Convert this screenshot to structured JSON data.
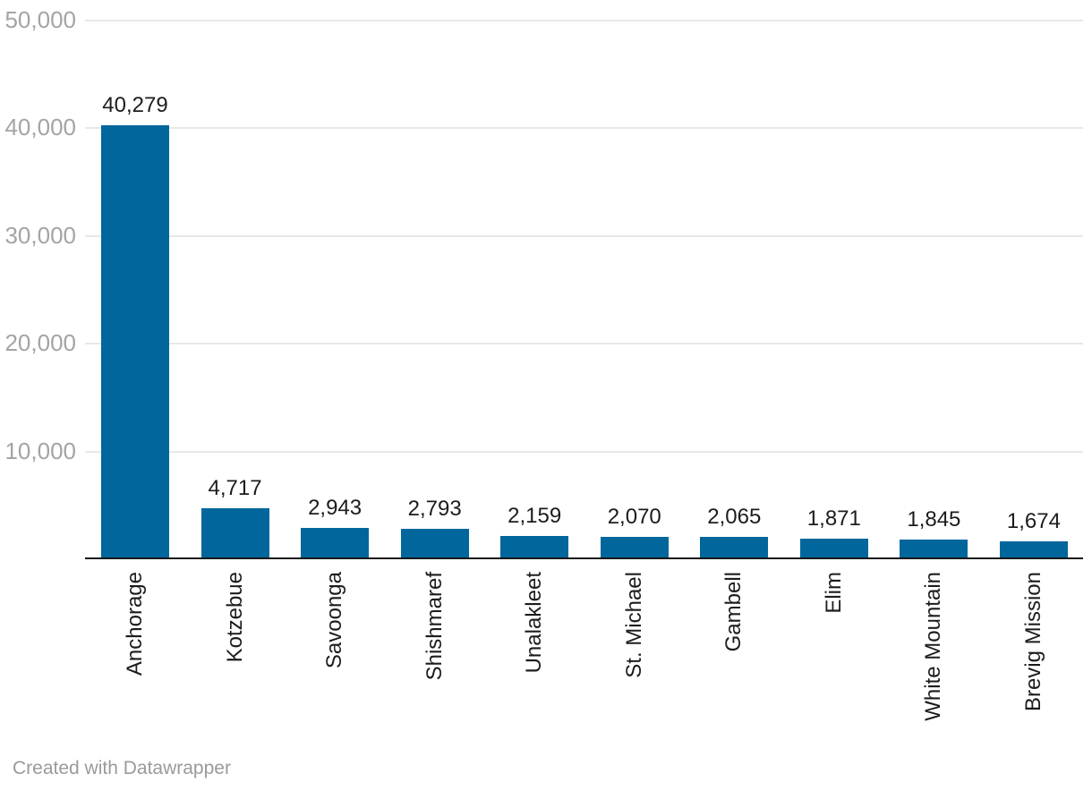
{
  "chart_data": {
    "type": "bar",
    "categories": [
      "Anchorage",
      "Kotzebue",
      "Savoonga",
      "Shishmaref",
      "Unalakleet",
      "St. Michael",
      "Gambell",
      "Elim",
      "White Mountain",
      "Brevig Mission"
    ],
    "values": [
      40279,
      4717,
      2943,
      2793,
      2159,
      2070,
      2065,
      1871,
      1845,
      1674
    ],
    "value_labels": [
      "40,279",
      "4,717",
      "2,943",
      "2,793",
      "2,159",
      "2,070",
      "2,065",
      "1,871",
      "1,845",
      "1,674"
    ],
    "title": "",
    "xlabel": "",
    "ylabel": "",
    "ylim": [
      0,
      50000
    ],
    "yticks": [
      10000,
      20000,
      30000,
      40000,
      50000
    ],
    "ytick_labels": [
      "10,000",
      "20,000",
      "30,000",
      "40,000",
      "50,000"
    ],
    "grid": true,
    "legend_position": "none",
    "bar_color": "#00669c"
  },
  "colors": {
    "bar": "#00669c",
    "gridline": "#e8e8e8",
    "axis_line": "#191919",
    "tick_label": "#a4a4a4",
    "value_label": "#1c1c1c",
    "category_label": "#1c1c1c",
    "footer_text": "#9a9a9a",
    "background": "#ffffff"
  },
  "footer": {
    "credit": "Created with Datawrapper"
  }
}
